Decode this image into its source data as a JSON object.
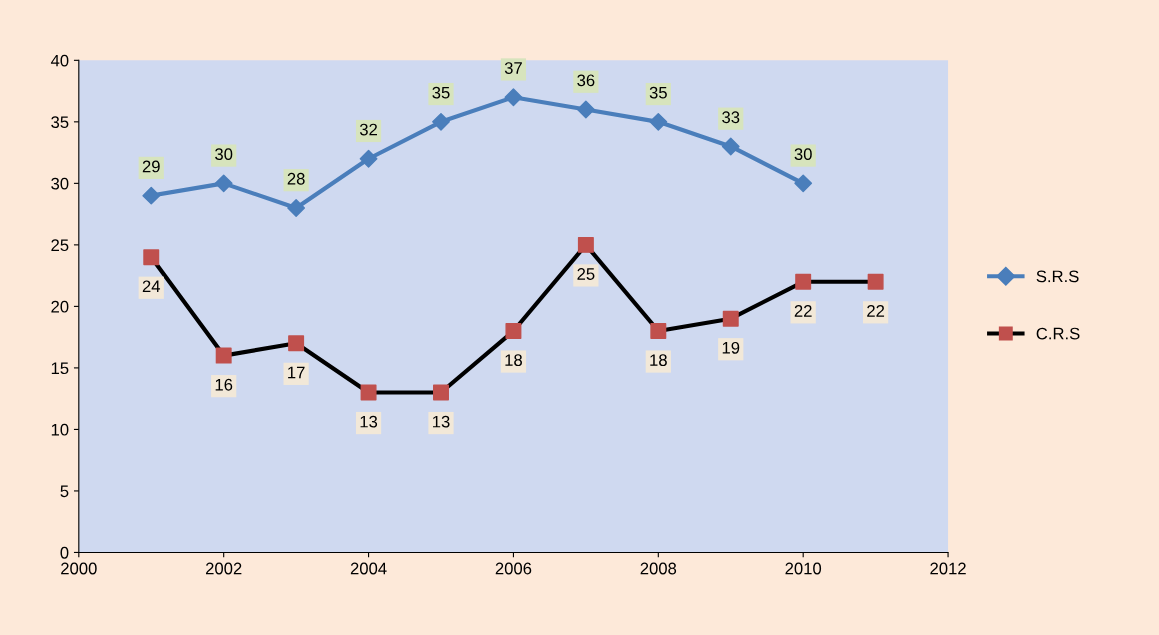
{
  "chart_data": {
    "type": "line",
    "xlim": [
      2000,
      2012
    ],
    "xticks": [
      2000,
      2002,
      2004,
      2006,
      2008,
      2010,
      2012
    ],
    "ylim": [
      0,
      40
    ],
    "yticks": [
      0,
      5,
      10,
      15,
      20,
      25,
      30,
      35,
      40
    ],
    "grid": false,
    "legend": "right",
    "data_labels": true,
    "series": [
      {
        "name": "S.R.S",
        "color": "#4a7ebb",
        "marker": "diamond",
        "x": [
          2001,
          2002,
          2003,
          2004,
          2005,
          2006,
          2007,
          2008,
          2009,
          2010
        ],
        "values": [
          29,
          30,
          28,
          32,
          35,
          37,
          36,
          35,
          33,
          30
        ]
      },
      {
        "name": "C.R.S",
        "color": "#000000",
        "colors": [
          "#c0504d",
          "#c0504d",
          "#c0504d",
          "#c0504d",
          "#c0504d",
          "#c0504d",
          "#c0504d",
          "#c0504d",
          "#c0504d",
          "#c0504d",
          "#c0504d"
        ],
        "marker": "square",
        "x": [
          2001,
          2002,
          2003,
          2004,
          2005,
          2006,
          2007,
          2008,
          2009,
          2010,
          2011
        ],
        "values": [
          24,
          16,
          17,
          13,
          13,
          18,
          25,
          18,
          19,
          22,
          22
        ]
      }
    ]
  }
}
